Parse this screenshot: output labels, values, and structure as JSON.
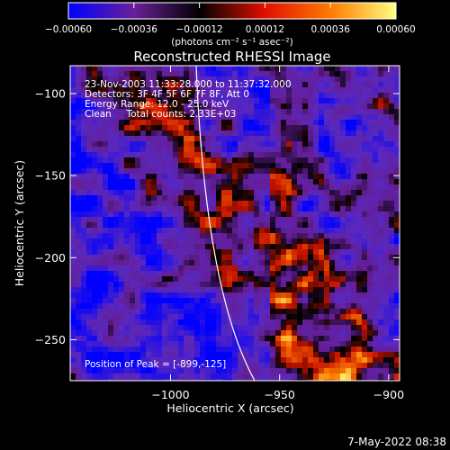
{
  "chart_data": {
    "type": "heatmap",
    "title": "Reconstructed RHESSI Image",
    "xlabel": "Heliocentric X (arcsec)",
    "ylabel": "Heliocentric Y (arcsec)",
    "xlim": [
      -1046,
      -895
    ],
    "ylim": [
      -275,
      -83
    ],
    "x_ticks": [
      "−1000",
      "−950",
      "−900"
    ],
    "x_tick_values": [
      -1000,
      -950,
      -900
    ],
    "y_ticks": [
      "−100",
      "−150",
      "−200",
      "−250"
    ],
    "y_tick_values": [
      -100,
      -150,
      -200,
      -250
    ],
    "colorbar": {
      "range": [
        -0.0006,
        0.0006
      ],
      "tick_labels": [
        "−0.00060",
        "−0.00036",
        "−0.00012",
        "0.00012",
        "0.00036",
        "0.00060"
      ],
      "tick_values": [
        -0.0006,
        -0.00036,
        -0.00012,
        0.00012,
        0.00036,
        0.0006
      ],
      "units": "(photons cm⁻² s⁻¹ asec⁻²)",
      "colors": [
        "#0000ff",
        "#6a1f9a",
        "#000000",
        "#e01000",
        "#ff7a00",
        "#ffff80"
      ]
    },
    "annotations": {
      "time": "23-Nov-2003 11:33:28.000 to 11:37:32.000",
      "detectors": "Detectors: 3F 4F 5F 6F 7F 8F, Att 0",
      "energy": "Energy Range: 12.0 - 25.0 keV",
      "clean": "Clean     Total counts: 2.33E+03",
      "peak": "Position of Peak = [-899,-125]"
    },
    "peak": [
      -899,
      -125
    ],
    "limb_line": {
      "color": "#ffffff"
    }
  },
  "footer": {
    "timestamp": "7-May-2022 08:38"
  }
}
